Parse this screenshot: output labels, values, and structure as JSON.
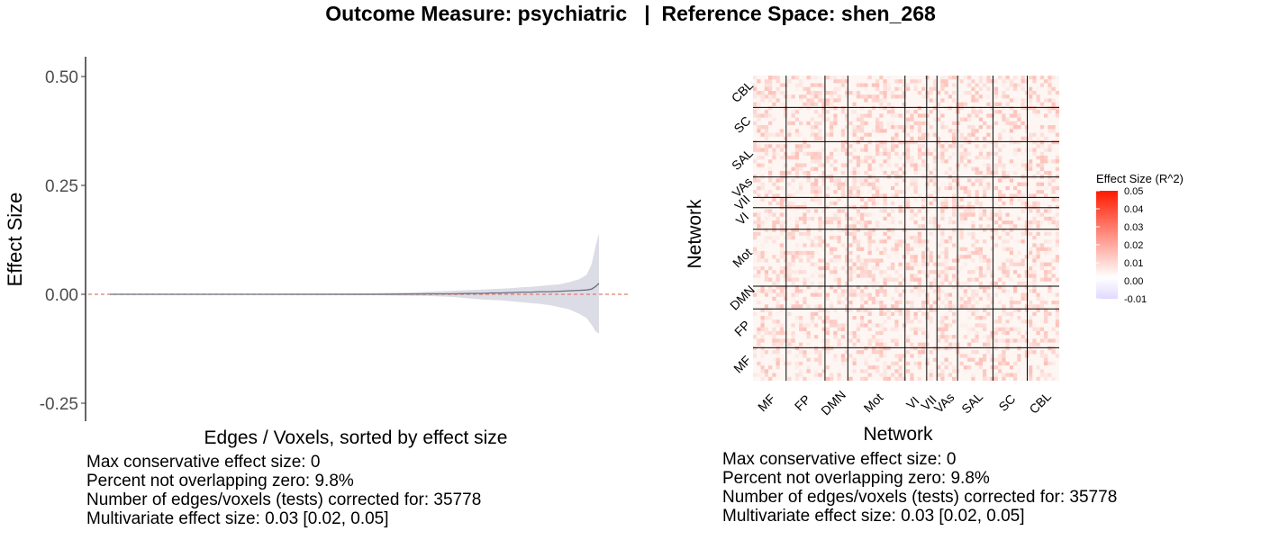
{
  "title": "Outcome Measure: psychiatric   |  Reference Space: shen_268",
  "colors": {
    "ribbon": "#dcdce6",
    "line": "#6e6e7e",
    "zero_line": "#d97f6a",
    "matrix_high": "#ff1a00",
    "matrix_low": "#e2d9ff",
    "grid": "#000000"
  },
  "chart_data": [
    {
      "type": "area",
      "title": "",
      "xlabel": "Edges / Voxels, sorted by effect size",
      "ylabel": "Effect Size",
      "ylim": [
        -0.28,
        0.54
      ],
      "yticks": [
        -0.25,
        0.0,
        0.25,
        0.5
      ],
      "ytick_labels": [
        "-0.25",
        "0.00",
        "0.25",
        "0.50"
      ],
      "reference_line": 0,
      "x": [
        0,
        0.1,
        0.2,
        0.3,
        0.4,
        0.5,
        0.55,
        0.6,
        0.65,
        0.7,
        0.72,
        0.74,
        0.76,
        0.78,
        0.8,
        0.82,
        0.84,
        0.86,
        0.88,
        0.9,
        0.92,
        0.94,
        0.96,
        0.975,
        0.985,
        0.993,
        1.0
      ],
      "series": [
        {
          "role": "estimate",
          "values": [
            0,
            0,
            0,
            0,
            0,
            0,
            0,
            0.0005,
            0.001,
            0.001,
            0.0015,
            0.002,
            0.002,
            0.003,
            0.003,
            0.004,
            0.005,
            0.005,
            0.006,
            0.006,
            0.007,
            0.008,
            0.009,
            0.01,
            0.012,
            0.018,
            0.025
          ]
        },
        {
          "role": "upper",
          "values": [
            0,
            0.0005,
            0.001,
            0.001,
            0.0015,
            0.002,
            0.003,
            0.004,
            0.006,
            0.008,
            0.009,
            0.01,
            0.011,
            0.012,
            0.013,
            0.014,
            0.016,
            0.017,
            0.019,
            0.021,
            0.023,
            0.028,
            0.035,
            0.045,
            0.07,
            0.11,
            0.14
          ]
        },
        {
          "role": "lower",
          "values": [
            0,
            -0.0005,
            -0.001,
            -0.001,
            -0.0015,
            -0.002,
            -0.002,
            -0.003,
            -0.004,
            -0.006,
            -0.008,
            -0.01,
            -0.012,
            -0.013,
            -0.014,
            -0.016,
            -0.018,
            -0.02,
            -0.022,
            -0.025,
            -0.03,
            -0.035,
            -0.045,
            -0.055,
            -0.07,
            -0.085,
            -0.09
          ]
        }
      ],
      "caption": [
        "Max conservative effect size: 0",
        "Percent not overlapping zero: 9.8%",
        "Number of edges/voxels (tests) corrected for: 35778",
        "Multivariate effect size: 0.03 [0.02, 0.05]"
      ]
    },
    {
      "type": "heatmap",
      "title": "",
      "xlabel": "Network",
      "ylabel": "Network",
      "networks": [
        "MF",
        "FP",
        "DMN",
        "Mot",
        "VI",
        "VII",
        "VAs",
        "SAL",
        "SC",
        "CBL"
      ],
      "network_sizes": [
        29,
        34,
        20,
        50,
        19,
        9,
        18,
        31,
        30,
        28
      ],
      "legend_title": "Effect Size (R^2)",
      "legend_ticks": [
        "0.05",
        "0.04",
        "0.03",
        "0.02",
        "0.01",
        "0.00",
        "-0.01"
      ],
      "color_range": [
        -0.01,
        0.05
      ],
      "caption": [
        "Max conservative effect size: 0",
        "Percent not overlapping zero: 9.8%",
        "Number of edges/voxels (tests) corrected for: 35778",
        "Multivariate effect size: 0.03 [0.02, 0.05]"
      ]
    }
  ]
}
